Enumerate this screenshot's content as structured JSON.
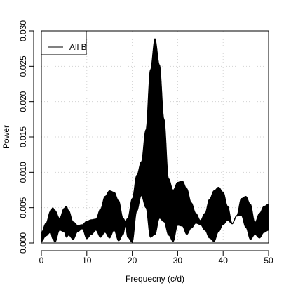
{
  "chart_data": {
    "type": "line",
    "title": "",
    "xlabel": "Frequecny (c/d)",
    "ylabel": "Power",
    "xlim": [
      0,
      50
    ],
    "ylim": [
      0,
      0.03
    ],
    "x_ticks": [
      0,
      10,
      20,
      30,
      40,
      50
    ],
    "x_tick_labels": [
      "0",
      "10",
      "20",
      "30",
      "40",
      "50"
    ],
    "y_ticks": [
      0,
      0.005,
      0.01,
      0.015,
      0.02,
      0.025,
      0.03
    ],
    "y_tick_labels": [
      "0.000",
      "0.005",
      "0.010",
      "0.015",
      "0.020",
      "0.025",
      "0.030"
    ],
    "grid": true,
    "legend": {
      "position": "top-left",
      "entries": [
        {
          "label": "All B",
          "color": "#000000"
        }
      ]
    },
    "series": [
      {
        "name": "All B",
        "color": "#000000",
        "envelope_x": [
          0,
          1,
          2,
          2.5,
          3,
          4,
          5,
          5.5,
          6,
          7,
          8,
          9,
          10,
          11,
          12,
          13,
          14,
          15,
          16,
          17,
          18,
          18.5,
          19,
          20,
          21,
          22,
          23,
          24,
          25,
          26,
          27,
          28,
          29,
          30,
          31,
          32,
          33,
          34,
          35,
          36,
          37,
          38,
          39,
          40,
          41,
          42,
          43,
          44,
          45,
          46,
          47,
          48,
          49,
          50
        ],
        "envelope_upper": [
          0.0015,
          0.0028,
          0.0045,
          0.005,
          0.0046,
          0.0035,
          0.0049,
          0.0052,
          0.0046,
          0.003,
          0.0025,
          0.0026,
          0.0031,
          0.0033,
          0.0034,
          0.0048,
          0.0066,
          0.0074,
          0.0072,
          0.006,
          0.0035,
          0.0031,
          0.0035,
          0.0063,
          0.0096,
          0.0115,
          0.016,
          0.0245,
          0.0289,
          0.0252,
          0.0175,
          0.0091,
          0.0075,
          0.0086,
          0.0088,
          0.0077,
          0.0057,
          0.0042,
          0.0032,
          0.0042,
          0.0062,
          0.0074,
          0.0079,
          0.0072,
          0.0052,
          0.0028,
          0.0039,
          0.0063,
          0.0066,
          0.0055,
          0.0029,
          0.0042,
          0.0052,
          0.0055
        ],
        "envelope_lower": [
          0.0002,
          0.001,
          0.0015,
          0.0006,
          0.0001,
          0.0018,
          0.0016,
          0.0008,
          0.0011,
          0.0005,
          0.0016,
          0.002,
          0.0006,
          0.0012,
          0.0018,
          0.0008,
          0.0015,
          0.0007,
          0.0018,
          0.0003,
          0.0012,
          0.0024,
          0.0008,
          0.0001,
          0.0045,
          0.0067,
          0.005,
          0.0008,
          0.0012,
          0.0035,
          0.003,
          0.0011,
          0.0002,
          0.0025,
          0.0024,
          0.0012,
          0.0021,
          0.0028,
          0.0026,
          0.0018,
          0.0007,
          0.0002,
          0.0016,
          0.0026,
          0.0032,
          0.0027,
          0.0038,
          0.0039,
          0.0022,
          0.0005,
          0.0012,
          0.0007,
          0.0015,
          0.0018
        ]
      }
    ]
  }
}
